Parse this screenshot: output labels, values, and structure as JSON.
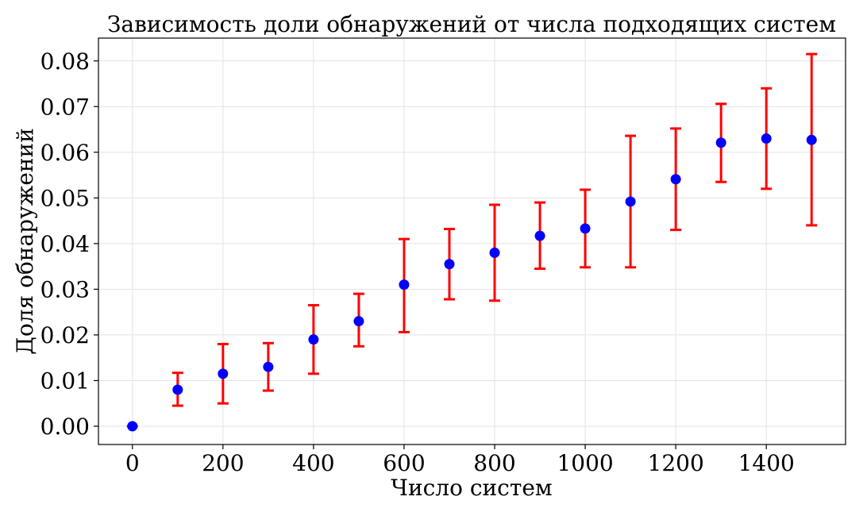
{
  "chart_data": {
    "type": "scatter",
    "title": "Зависимость доли обнаружений от числа подходящих систем",
    "xlabel": "Число систем",
    "ylabel": "Доля обнаружений",
    "xlim": [
      -75,
      1575
    ],
    "ylim": [
      -0.004,
      0.085
    ],
    "xticks": [
      0,
      200,
      400,
      600,
      800,
      1000,
      1200,
      1400
    ],
    "xtick_labels": [
      "0",
      "200",
      "400",
      "600",
      "800",
      "1000",
      "1200",
      "1400"
    ],
    "yticks": [
      0.0,
      0.01,
      0.02,
      0.03,
      0.04,
      0.05,
      0.06,
      0.07,
      0.08
    ],
    "ytick_labels": [
      "0.00",
      "0.01",
      "0.02",
      "0.03",
      "0.04",
      "0.05",
      "0.06",
      "0.07",
      "0.08"
    ],
    "grid": true,
    "marker_color": "#0000ff",
    "errorbar_color": "#ff0000",
    "series": [
      {
        "x": [
          0,
          100,
          200,
          300,
          400,
          500,
          600,
          700,
          800,
          900,
          1000,
          1100,
          1200,
          1300,
          1400,
          1500
        ],
        "y": [
          0.0,
          0.008,
          0.0115,
          0.013,
          0.019,
          0.023,
          0.031,
          0.0355,
          0.038,
          0.0417,
          0.0433,
          0.0492,
          0.0541,
          0.0621,
          0.063,
          0.0627
        ],
        "y_lower": [
          0.0,
          0.0045,
          0.005,
          0.0078,
          0.0115,
          0.0175,
          0.0206,
          0.0278,
          0.0275,
          0.0345,
          0.0348,
          0.0348,
          0.043,
          0.0535,
          0.052,
          0.044
        ],
        "y_upper": [
          0.0,
          0.0117,
          0.018,
          0.0182,
          0.0265,
          0.029,
          0.041,
          0.0432,
          0.0485,
          0.049,
          0.0518,
          0.0636,
          0.0652,
          0.0706,
          0.074,
          0.0815
        ]
      }
    ]
  }
}
